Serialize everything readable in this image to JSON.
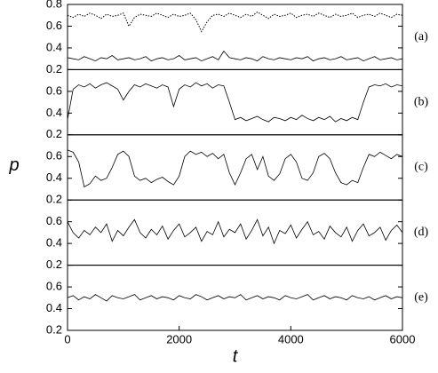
{
  "chart_data": [
    {
      "type": "line",
      "annotation": "(a)",
      "xlim": [
        0,
        6000
      ],
      "ylim": [
        0.2,
        0.8
      ],
      "yticks": [
        0.2,
        0.4,
        0.6,
        0.8
      ],
      "x": [
        0,
        100,
        200,
        300,
        400,
        500,
        600,
        700,
        800,
        900,
        1000,
        1100,
        1200,
        1300,
        1400,
        1500,
        1600,
        1700,
        1800,
        1900,
        2000,
        2100,
        2200,
        2300,
        2400,
        2500,
        2600,
        2700,
        2800,
        2900,
        3000,
        3100,
        3200,
        3300,
        3400,
        3500,
        3600,
        3700,
        3800,
        3900,
        4000,
        4100,
        4200,
        4300,
        4400,
        4500,
        4600,
        4700,
        4800,
        4900,
        5000,
        5100,
        5200,
        5300,
        5400,
        5500,
        5600,
        5700,
        5800,
        5900,
        6000
      ],
      "series": [
        {
          "color": "#000000",
          "dash": "dotted",
          "values": [
            0.7,
            0.68,
            0.71,
            0.69,
            0.72,
            0.7,
            0.67,
            0.71,
            0.69,
            0.7,
            0.72,
            0.6,
            0.68,
            0.71,
            0.7,
            0.69,
            0.72,
            0.7,
            0.68,
            0.71,
            0.69,
            0.7,
            0.72,
            0.66,
            0.55,
            0.64,
            0.7,
            0.71,
            0.69,
            0.72,
            0.7,
            0.68,
            0.71,
            0.69,
            0.73,
            0.7,
            0.67,
            0.71,
            0.69,
            0.7,
            0.72,
            0.68,
            0.7,
            0.71,
            0.69,
            0.72,
            0.7,
            0.68,
            0.71,
            0.69,
            0.7,
            0.72,
            0.68,
            0.7,
            0.71,
            0.69,
            0.72,
            0.7,
            0.68,
            0.71,
            0.7
          ]
        },
        {
          "color": "#000000",
          "dash": "solid",
          "values": [
            0.31,
            0.3,
            0.29,
            0.32,
            0.3,
            0.28,
            0.31,
            0.3,
            0.33,
            0.29,
            0.3,
            0.31,
            0.29,
            0.3,
            0.32,
            0.28,
            0.3,
            0.31,
            0.29,
            0.3,
            0.33,
            0.29,
            0.3,
            0.31,
            0.28,
            0.3,
            0.32,
            0.29,
            0.37,
            0.31,
            0.3,
            0.29,
            0.31,
            0.3,
            0.28,
            0.32,
            0.3,
            0.29,
            0.31,
            0.3,
            0.29,
            0.31,
            0.3,
            0.32,
            0.28,
            0.3,
            0.31,
            0.29,
            0.3,
            0.32,
            0.29,
            0.3,
            0.31,
            0.28,
            0.3,
            0.32,
            0.29,
            0.3,
            0.31,
            0.29,
            0.3
          ]
        }
      ]
    },
    {
      "type": "line",
      "annotation": "(b)",
      "xlim": [
        0,
        6000
      ],
      "ylim": [
        0.2,
        0.8
      ],
      "yticks": [
        0.2,
        0.4,
        0.6
      ],
      "x": [
        0,
        100,
        200,
        300,
        400,
        500,
        600,
        700,
        800,
        900,
        1000,
        1100,
        1200,
        1300,
        1400,
        1500,
        1600,
        1700,
        1800,
        1900,
        2000,
        2100,
        2200,
        2300,
        2400,
        2500,
        2600,
        2700,
        2800,
        2900,
        3000,
        3100,
        3200,
        3300,
        3400,
        3500,
        3600,
        3700,
        3800,
        3900,
        4000,
        4100,
        4200,
        4300,
        4400,
        4500,
        4600,
        4700,
        4800,
        4900,
        5000,
        5100,
        5200,
        5300,
        5400,
        5500,
        5600,
        5700,
        5800,
        5900,
        6000
      ],
      "series": [
        {
          "color": "#000000",
          "dash": "solid",
          "values": [
            0.34,
            0.62,
            0.66,
            0.64,
            0.67,
            0.63,
            0.66,
            0.68,
            0.65,
            0.62,
            0.52,
            0.6,
            0.66,
            0.64,
            0.67,
            0.65,
            0.63,
            0.66,
            0.64,
            0.46,
            0.62,
            0.66,
            0.64,
            0.68,
            0.65,
            0.67,
            0.63,
            0.66,
            0.65,
            0.5,
            0.34,
            0.36,
            0.33,
            0.35,
            0.37,
            0.34,
            0.32,
            0.36,
            0.35,
            0.33,
            0.36,
            0.34,
            0.38,
            0.35,
            0.33,
            0.36,
            0.34,
            0.37,
            0.32,
            0.35,
            0.33,
            0.36,
            0.34,
            0.5,
            0.64,
            0.66,
            0.65,
            0.67,
            0.64,
            0.66,
            0.65
          ]
        }
      ]
    },
    {
      "type": "line",
      "annotation": "(c)",
      "ylabel": "p",
      "xlim": [
        0,
        6000
      ],
      "ylim": [
        0.2,
        0.8
      ],
      "yticks": [
        0.2,
        0.4,
        0.6
      ],
      "x": [
        0,
        100,
        200,
        300,
        400,
        500,
        600,
        700,
        800,
        900,
        1000,
        1100,
        1200,
        1300,
        1400,
        1500,
        1600,
        1700,
        1800,
        1900,
        2000,
        2100,
        2200,
        2300,
        2400,
        2500,
        2600,
        2700,
        2800,
        2900,
        3000,
        3100,
        3200,
        3300,
        3400,
        3500,
        3600,
        3700,
        3800,
        3900,
        4000,
        4100,
        4200,
        4300,
        4400,
        4500,
        4600,
        4700,
        4800,
        4900,
        5000,
        5100,
        5200,
        5300,
        5400,
        5500,
        5600,
        5700,
        5800,
        5900,
        6000
      ],
      "series": [
        {
          "color": "#000000",
          "dash": "solid",
          "values": [
            0.66,
            0.64,
            0.55,
            0.32,
            0.35,
            0.42,
            0.38,
            0.4,
            0.5,
            0.62,
            0.65,
            0.6,
            0.42,
            0.38,
            0.4,
            0.36,
            0.39,
            0.41,
            0.37,
            0.34,
            0.42,
            0.6,
            0.65,
            0.62,
            0.64,
            0.6,
            0.63,
            0.58,
            0.62,
            0.45,
            0.34,
            0.45,
            0.58,
            0.62,
            0.48,
            0.6,
            0.42,
            0.38,
            0.44,
            0.58,
            0.62,
            0.55,
            0.4,
            0.38,
            0.45,
            0.6,
            0.63,
            0.58,
            0.45,
            0.36,
            0.34,
            0.38,
            0.36,
            0.5,
            0.62,
            0.6,
            0.64,
            0.61,
            0.58,
            0.62,
            0.6
          ]
        }
      ]
    },
    {
      "type": "line",
      "annotation": "(d)",
      "xlim": [
        0,
        6000
      ],
      "ylim": [
        0.2,
        0.8
      ],
      "yticks": [
        0.2,
        0.4,
        0.6
      ],
      "x": [
        0,
        100,
        200,
        300,
        400,
        500,
        600,
        700,
        800,
        900,
        1000,
        1100,
        1200,
        1300,
        1400,
        1500,
        1600,
        1700,
        1800,
        1900,
        2000,
        2100,
        2200,
        2300,
        2400,
        2500,
        2600,
        2700,
        2800,
        2900,
        3000,
        3100,
        3200,
        3300,
        3400,
        3500,
        3600,
        3700,
        3800,
        3900,
        4000,
        4100,
        4200,
        4300,
        4400,
        4500,
        4600,
        4700,
        4800,
        4900,
        5000,
        5100,
        5200,
        5300,
        5400,
        5500,
        5600,
        5700,
        5800,
        5900,
        6000
      ],
      "series": [
        {
          "color": "#000000",
          "dash": "solid",
          "values": [
            0.6,
            0.5,
            0.45,
            0.52,
            0.48,
            0.55,
            0.5,
            0.58,
            0.42,
            0.52,
            0.47,
            0.55,
            0.62,
            0.5,
            0.45,
            0.53,
            0.48,
            0.56,
            0.44,
            0.52,
            0.58,
            0.46,
            0.5,
            0.55,
            0.42,
            0.51,
            0.48,
            0.6,
            0.46,
            0.53,
            0.5,
            0.58,
            0.44,
            0.52,
            0.62,
            0.47,
            0.55,
            0.4,
            0.52,
            0.49,
            0.57,
            0.45,
            0.53,
            0.6,
            0.48,
            0.51,
            0.44,
            0.56,
            0.5,
            0.46,
            0.55,
            0.42,
            0.52,
            0.58,
            0.47,
            0.5,
            0.55,
            0.43,
            0.52,
            0.57,
            0.5
          ]
        }
      ]
    },
    {
      "type": "line",
      "annotation": "(e)",
      "xlabel": "t",
      "xlim": [
        0,
        6000
      ],
      "xticks": [
        0,
        2000,
        4000,
        6000
      ],
      "ylim": [
        0.2,
        0.8
      ],
      "yticks": [
        0.2,
        0.4,
        0.6
      ],
      "x": [
        0,
        100,
        200,
        300,
        400,
        500,
        600,
        700,
        800,
        900,
        1000,
        1100,
        1200,
        1300,
        1400,
        1500,
        1600,
        1700,
        1800,
        1900,
        2000,
        2100,
        2200,
        2300,
        2400,
        2500,
        2600,
        2700,
        2800,
        2900,
        3000,
        3100,
        3200,
        3300,
        3400,
        3500,
        3600,
        3700,
        3800,
        3900,
        4000,
        4100,
        4200,
        4300,
        4400,
        4500,
        4600,
        4700,
        4800,
        4900,
        5000,
        5100,
        5200,
        5300,
        5400,
        5500,
        5600,
        5700,
        5800,
        5900,
        6000
      ],
      "series": [
        {
          "color": "#000000",
          "dash": "solid",
          "values": [
            0.5,
            0.52,
            0.48,
            0.51,
            0.49,
            0.53,
            0.5,
            0.47,
            0.52,
            0.5,
            0.49,
            0.51,
            0.53,
            0.48,
            0.5,
            0.52,
            0.49,
            0.51,
            0.5,
            0.48,
            0.52,
            0.5,
            0.49,
            0.53,
            0.51,
            0.48,
            0.5,
            0.52,
            0.49,
            0.51,
            0.5,
            0.53,
            0.48,
            0.5,
            0.52,
            0.49,
            0.51,
            0.5,
            0.48,
            0.52,
            0.5,
            0.49,
            0.51,
            0.53,
            0.48,
            0.5,
            0.52,
            0.49,
            0.51,
            0.5,
            0.48,
            0.52,
            0.5,
            0.49,
            0.51,
            0.48,
            0.5,
            0.52,
            0.49,
            0.51,
            0.5
          ]
        }
      ]
    }
  ]
}
